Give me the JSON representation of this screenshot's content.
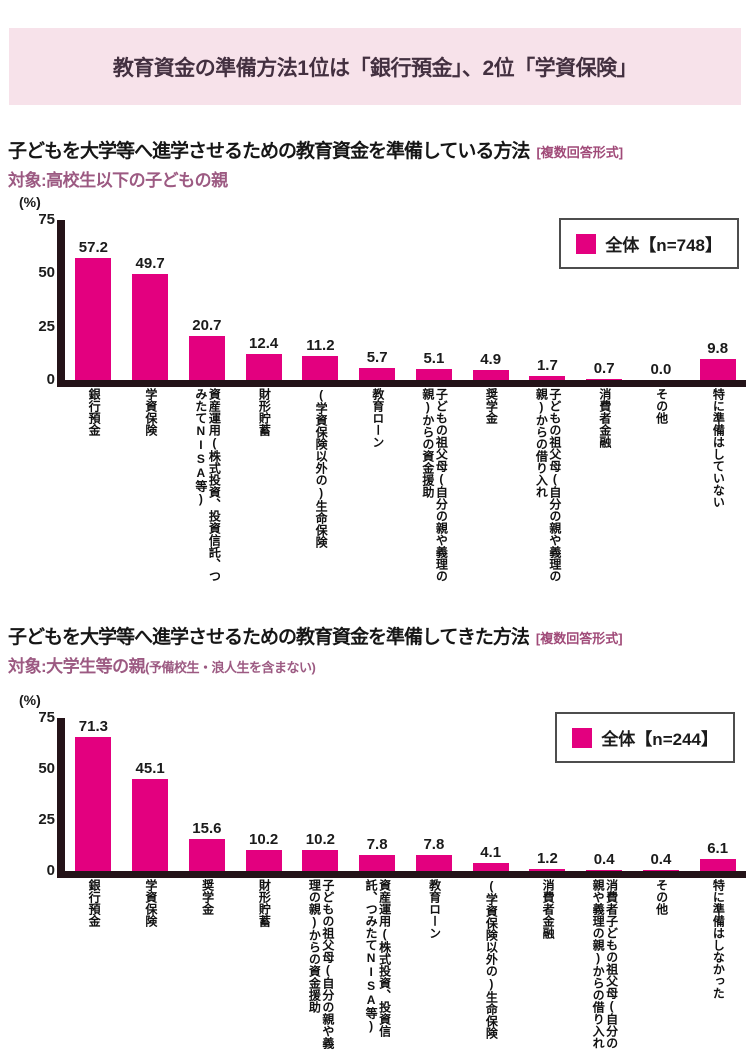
{
  "banner": {
    "title": "教育資金の準備方法1位は「銀行預金」、2位「学資保険」"
  },
  "colors": {
    "bar": "#e3007f",
    "banner_bg": "#f7e2ea",
    "banner_text": "#433040",
    "accent_text": "#9c5a82",
    "tag_text": "#a04a78",
    "axis": "#241318"
  },
  "chart_data": [
    {
      "type": "bar",
      "title": "子どもを大学等へ進学させるための教育資金を準備している方法",
      "format_tag": "[複数回答形式]",
      "target": "対象:高校生以下の子どもの親",
      "target_note": "",
      "legend": "全体【n=748】",
      "legend_position": "top-right",
      "ylabel": "(%)",
      "ylim": [
        0,
        75
      ],
      "yticks": [
        0,
        25,
        50,
        75
      ],
      "grid": false,
      "categories": [
        "銀行預金",
        "学資保険",
        "資産運用(株式投資、投資信託、つみたてNISA等)",
        "財形貯蓄",
        "(学資保険以外の)生命保険",
        "教育ローン",
        "子どもの祖父母(自分の親や義理の親)からの資金援助",
        "奨学金",
        "子どもの祖父母(自分の親や義理の親)からの借り入れ",
        "消費者金融",
        "その他",
        "特に準備はしていない"
      ],
      "values": [
        57.2,
        49.7,
        20.7,
        12.4,
        11.2,
        5.7,
        5.1,
        4.9,
        1.7,
        0.7,
        0.0,
        9.8
      ]
    },
    {
      "type": "bar",
      "title": "子どもを大学等へ進学させるための教育資金を準備してきた方法",
      "format_tag": "[複数回答形式]",
      "target": "対象:大学生等の親",
      "target_note": "(予備校生・浪人生を含まない)",
      "legend": "全体【n=244】",
      "legend_position": "top-right",
      "ylabel": "(%)",
      "ylim": [
        0,
        75
      ],
      "yticks": [
        0,
        25,
        50,
        75
      ],
      "grid": false,
      "categories": [
        "銀行預金",
        "学資保険",
        "奨学金",
        "財形貯蓄",
        "子どもの祖父母(自分の親や義理の親)からの資金援助",
        "資産運用(株式投資、投資信託、つみたてNISA等)",
        "教育ローン",
        "(学資保険以外の)生命保険",
        "消費者金融",
        "消費者子どもの祖父母(自分の親や義理の親)からの借り入れ",
        "その他",
        "特に準備はしなかった"
      ],
      "values": [
        71.3,
        45.1,
        15.6,
        10.2,
        10.2,
        7.8,
        7.8,
        4.1,
        1.2,
        0.4,
        0.4,
        6.1
      ]
    }
  ]
}
